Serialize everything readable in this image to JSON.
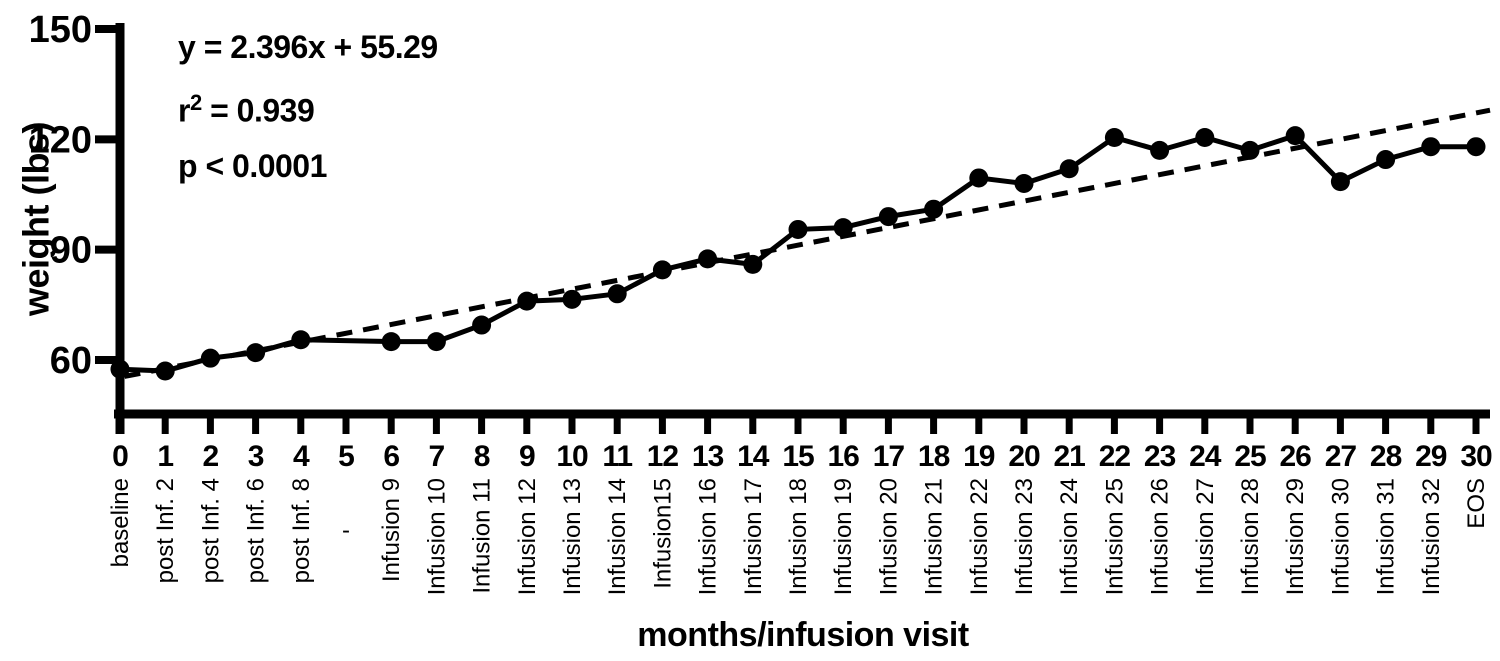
{
  "chart_data": {
    "type": "scatter",
    "title": "",
    "xlabel": "months/infusion visit",
    "ylabel": "weight (lbs)",
    "grid": false,
    "legend": "none",
    "background_color": "#ffffff",
    "series_color": "#000000",
    "trend_color": "#000000",
    "xlim": [
      0,
      30.5
    ],
    "ylim": [
      40,
      150
    ],
    "y_ticks": [
      60,
      90,
      120,
      150
    ],
    "months": [
      0,
      1,
      2,
      3,
      4,
      5,
      6,
      7,
      8,
      9,
      10,
      11,
      12,
      13,
      14,
      15,
      16,
      17,
      18,
      19,
      20,
      21,
      22,
      23,
      24,
      25,
      26,
      27,
      28,
      29,
      30
    ],
    "values": [
      57.5,
      57,
      60.5,
      62,
      65.5,
      null,
      65,
      65,
      69.5,
      76,
      76.5,
      78,
      84.5,
      87.5,
      86,
      95.5,
      96,
      99,
      101,
      109.5,
      108,
      112,
      120.5,
      117,
      120.5,
      117,
      121,
      108.5,
      114.5,
      118,
      118
    ],
    "visit_labels": [
      "baseline",
      "post Inf. 2",
      "post Inf. 4",
      "post Inf. 6",
      "post Inf. 8",
      "-",
      "Infusion 9",
      "Infusion 10",
      "Infusion 11",
      "Infusion 12",
      "Infusion 13",
      "Infusion 14",
      "Infusion15",
      "Infusion 16",
      "Infusion 17",
      "Infusion 18",
      "Infusion 19",
      "Infusion 20",
      "Infusion 21",
      "Infusion 22",
      "Infusion 23",
      "Infusion 24",
      "Infusion 25",
      "Infusion 26",
      "Infusion 27",
      "Infusion 28",
      "Infusion 29",
      "Infusion 30",
      "Infusion 31",
      "Infusion 32",
      "EOS"
    ],
    "trendline": {
      "slope": 2.396,
      "intercept": 55.29,
      "style": "dashed"
    },
    "annotations": {
      "equation": "y = 2.396x + 55.29",
      "r2_base": "r",
      "r2_sup": "2",
      "r2_rest": " = 0.939",
      "p_value": "p < 0.0001"
    }
  }
}
